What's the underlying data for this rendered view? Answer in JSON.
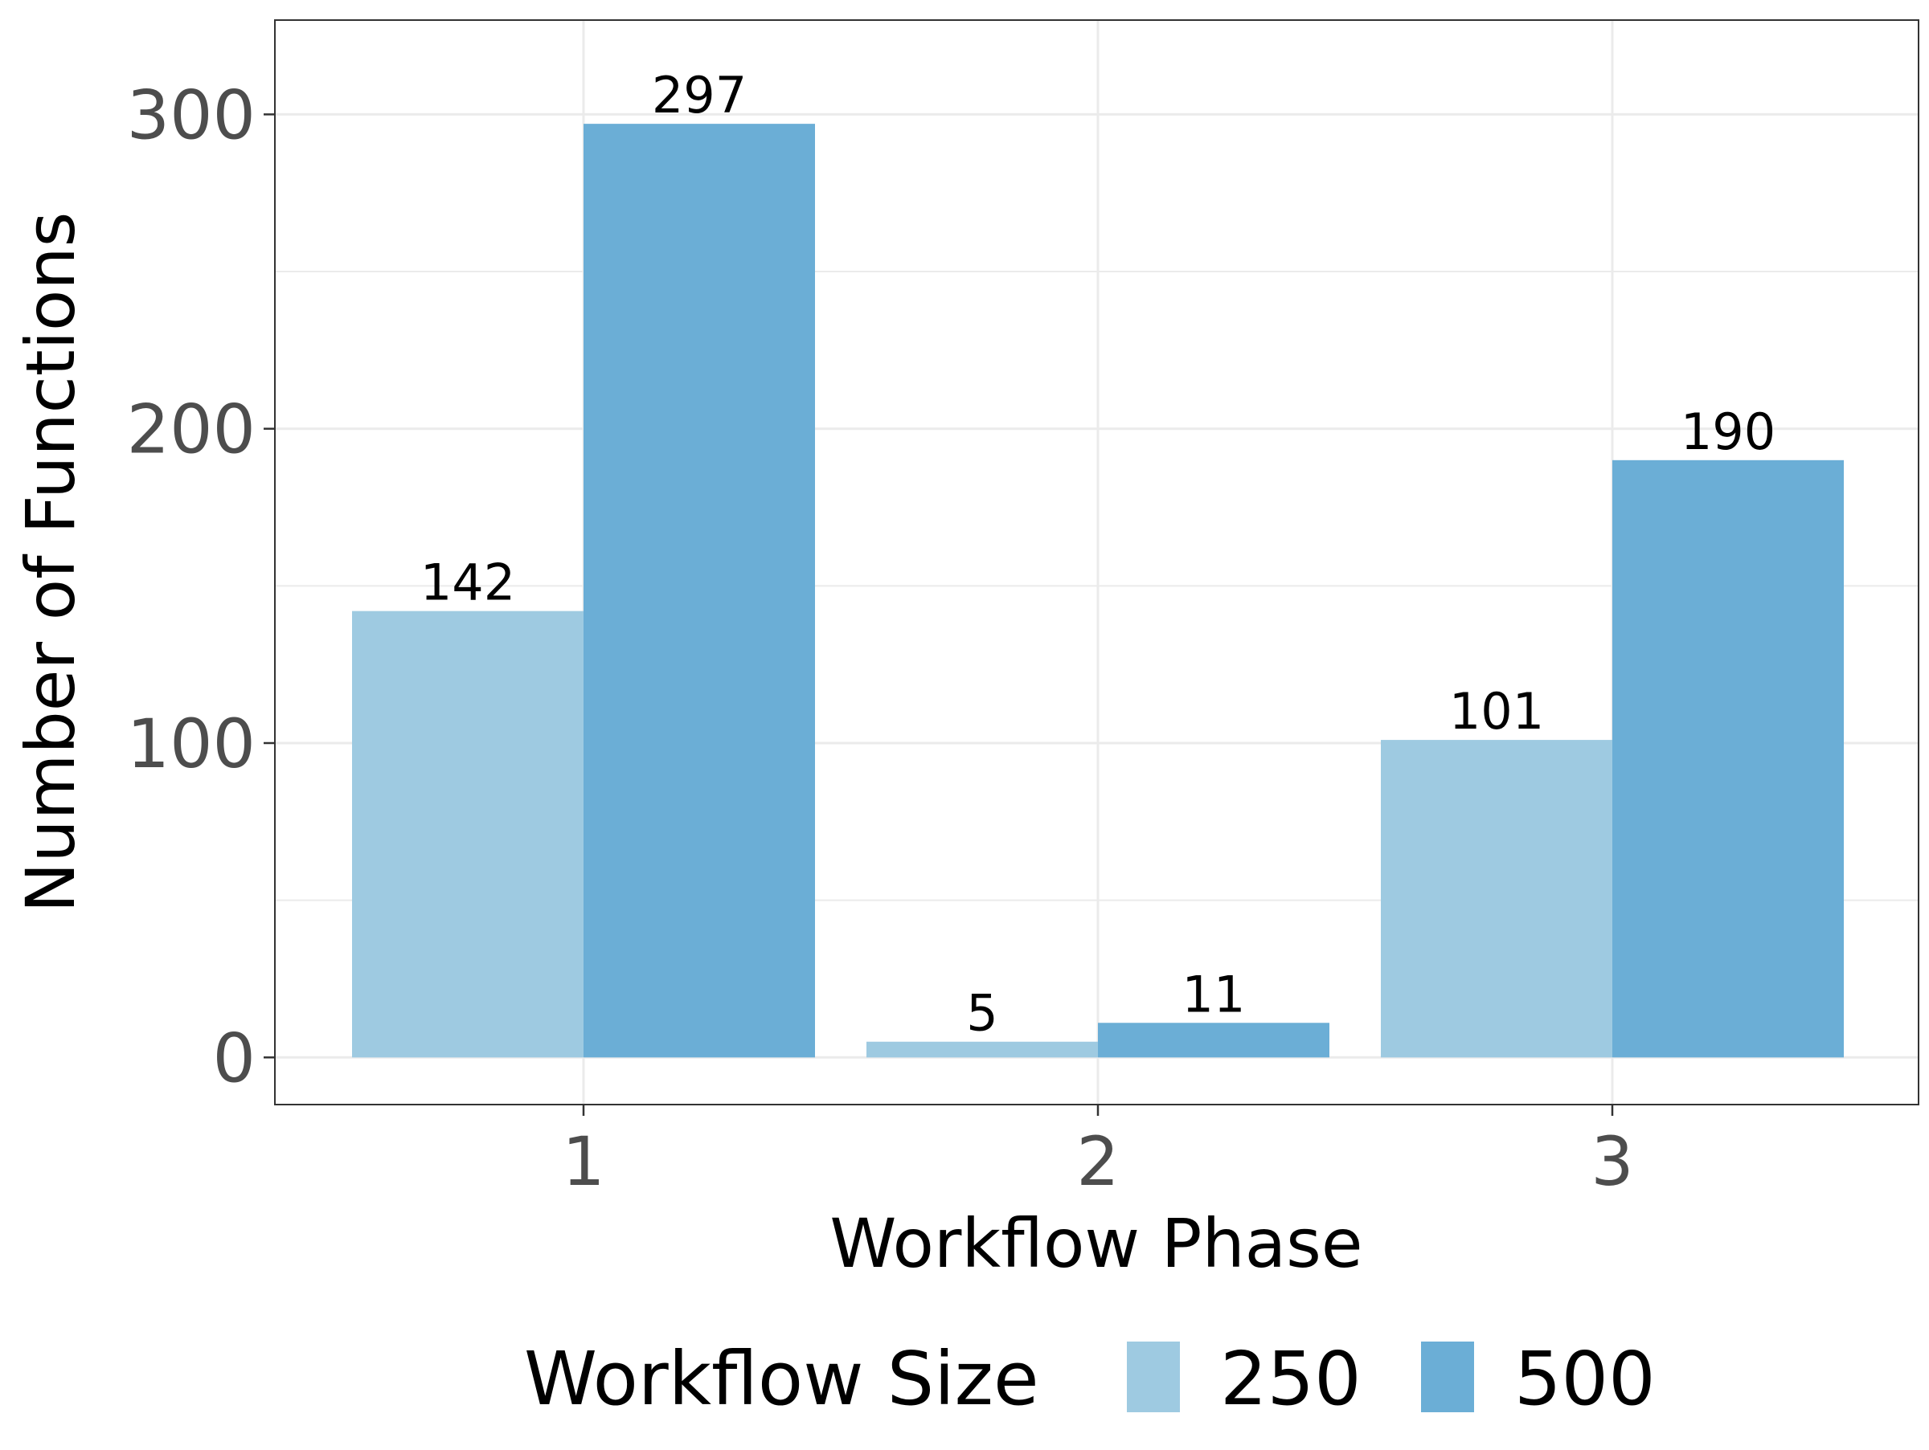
{
  "chart_data": {
    "type": "bar",
    "xlabel": "Workflow Phase",
    "ylabel": "Number of Functions",
    "categories": [
      "1",
      "2",
      "3"
    ],
    "series": [
      {
        "name": "250",
        "values": [
          142,
          5,
          101
        ],
        "color": "#9ecae1"
      },
      {
        "name": "500",
        "values": [
          297,
          11,
          190
        ],
        "color": "#6baed6"
      }
    ],
    "ylim": [
      -15,
      330
    ],
    "yticks": [
      0,
      100,
      200,
      300
    ],
    "yticks_minor": [
      50,
      150,
      250
    ],
    "grid": true,
    "legend": {
      "title": "Workflow Size",
      "position": "bottom"
    }
  }
}
